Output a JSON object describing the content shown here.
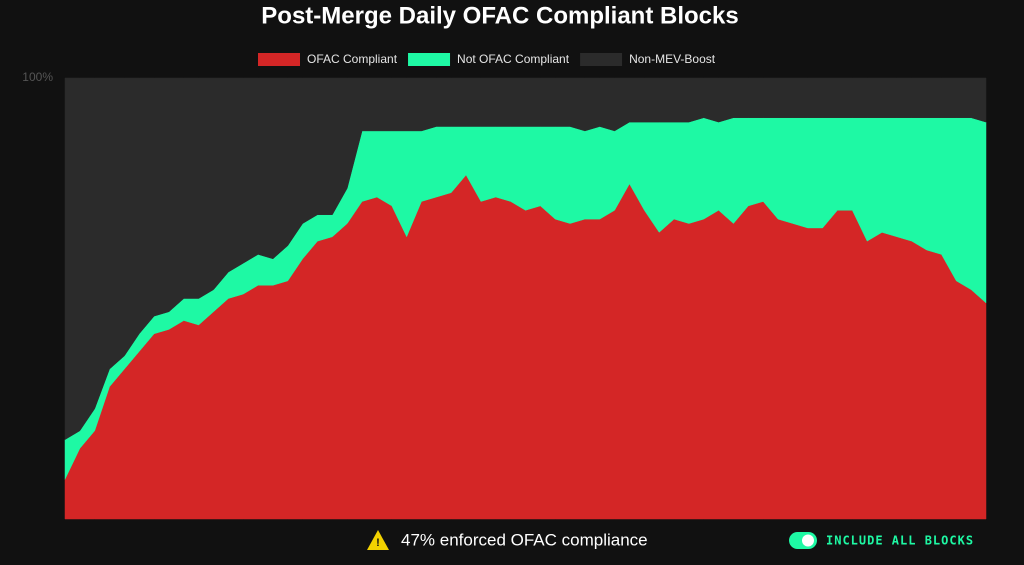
{
  "chart_data": {
    "type": "stacked-area",
    "title": "Post-Merge Daily OFAC Compliant Blocks",
    "ylim": [
      0,
      100
    ],
    "yticks": [
      {
        "value": 100,
        "label": "100%"
      }
    ],
    "legend": "top",
    "series": [
      {
        "name": "OFAC Compliant",
        "color": "#d42626",
        "values": [
          9,
          16,
          20,
          30,
          34,
          38,
          42,
          43,
          45,
          44,
          47,
          50,
          51,
          53,
          53,
          54,
          59,
          63,
          64,
          67,
          72,
          73,
          71,
          64,
          72,
          73,
          74,
          78,
          72,
          73,
          72,
          70,
          71,
          68,
          67,
          68,
          68,
          70,
          76,
          70,
          65,
          68,
          67,
          68,
          70,
          67,
          71,
          72,
          68,
          67,
          66,
          66,
          70,
          70,
          63,
          65,
          64,
          63,
          61,
          60,
          54,
          52,
          49
        ]
      },
      {
        "name": "Not OFAC Compliant",
        "color": "#1ef9a4",
        "values": [
          9,
          4,
          5,
          4,
          3,
          4,
          4,
          4,
          5,
          6,
          5,
          6,
          7,
          7,
          6,
          8,
          8,
          6,
          5,
          8,
          16,
          15,
          17,
          24,
          16,
          16,
          15,
          11,
          17,
          16,
          17,
          19,
          18,
          21,
          22,
          20,
          21,
          18,
          14,
          20,
          25,
          22,
          23,
          23,
          20,
          24,
          20,
          19,
          23,
          24,
          25,
          25,
          21,
          21,
          28,
          26,
          27,
          28,
          30,
          31,
          37,
          39,
          41
        ]
      },
      {
        "name": "Non-MEV-Boost",
        "color": "#2b2b2b",
        "values": [
          82,
          80,
          75,
          66,
          63,
          58,
          54,
          53,
          50,
          50,
          48,
          44,
          42,
          40,
          41,
          38,
          33,
          31,
          31,
          25,
          12,
          12,
          12,
          12,
          12,
          11,
          11,
          11,
          11,
          11,
          11,
          11,
          11,
          11,
          11,
          12,
          11,
          12,
          10,
          10,
          10,
          10,
          10,
          9,
          10,
          9,
          9,
          9,
          9,
          9,
          9,
          9,
          9,
          9,
          9,
          9,
          9,
          9,
          9,
          9,
          9,
          9,
          10
        ]
      }
    ]
  },
  "footer": {
    "summary": "47% enforced OFAC compliance",
    "toggle_label": "INCLUDE ALL BLOCKS"
  }
}
